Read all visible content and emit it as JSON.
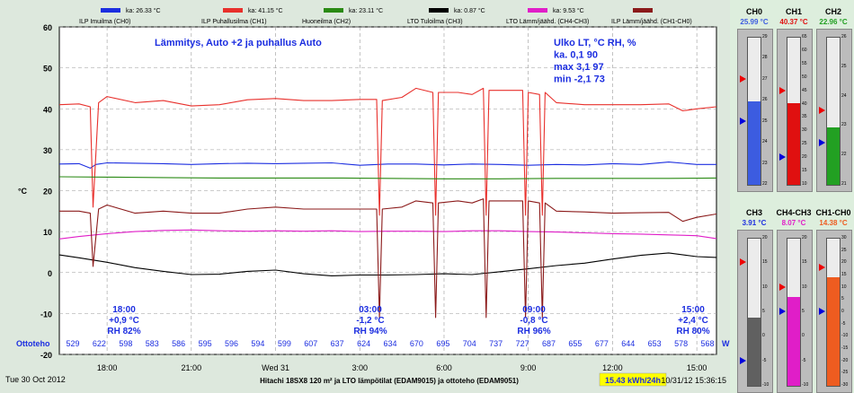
{
  "legend": [
    {
      "swatch": "#1c2ee0",
      "text": "ka: 26.33 °C",
      "name": "ILP Imuilma (CH0)"
    },
    {
      "swatch": "#e8302c",
      "text": "ka: 41.15 °C",
      "name": "ILP Puhallusilma (CH1)"
    },
    {
      "swatch": "#2a8a14",
      "text": "ka: 23.11 °C",
      "name": "Huoneilma (CH2)"
    },
    {
      "swatch": "#000000",
      "text": "ka: 0.87 °C",
      "name": "LTO Tuloilma (CH3)"
    },
    {
      "swatch": "#e01ec8",
      "text": "ka: 9.53 °C",
      "name": "LTO Lämm/jäähd. (CH4-CH3)"
    },
    {
      "swatch": "#8b1a1a",
      "text": "",
      "name": "ILP Lämm/jäähd. (CH1-CH0)"
    }
  ],
  "info": {
    "title": "Lämmitys, Auto +2 ja puhallus Auto",
    "outdoor": [
      "Ulko LT, °C  RH, %",
      "ka.    0,1     90",
      "max  3,1      97",
      "min  -2,1      73"
    ]
  },
  "annotations": [
    {
      "lines": [
        "18:00",
        "+0,9 °C",
        "RH 82%"
      ]
    },
    {
      "lines": [
        "03:00",
        "-1,2 °C",
        "RH 94%"
      ]
    },
    {
      "lines": [
        "09:00",
        "-0,8 °C",
        "RH 96%"
      ]
    },
    {
      "lines": [
        "15:00",
        "+2,4 °C",
        "RH 80%"
      ]
    }
  ],
  "ottoteho": {
    "label": "Ottoteho",
    "unit": "W",
    "values": [
      "529",
      "622",
      "598",
      "583",
      "586",
      "595",
      "596",
      "594",
      "599",
      "607",
      "637",
      "624",
      "634",
      "670",
      "695",
      "704",
      "737",
      "727",
      "687",
      "655",
      "677",
      "644",
      "653",
      "578",
      "568"
    ]
  },
  "footer": {
    "date": "Tue 30 Oct 2012",
    "caption": "Hitachi 18SX8 120 m² ja LTO lämpötilat (EDAM9015) ja ottoteho (EDAM9051)",
    "energy": "15.43 kWh/24h",
    "timestamp": "10/31/12 15:36:15"
  },
  "colors": {
    "ch0": "#1c2ee0",
    "ch1": "#e8302c",
    "ch2": "#2a8a14",
    "ch3": "#000000",
    "ch43": "#e01ec8",
    "ch10": "#8b1a1a",
    "annot": "#1c2ee0",
    "energy_bg": "#ffff00"
  },
  "chart_data": {
    "type": "line",
    "ylabel": "°C",
    "ylim": [
      -20,
      60
    ],
    "yticks": [
      -20,
      -10,
      0,
      10,
      20,
      30,
      40,
      50,
      60
    ],
    "xlim": [
      16.3,
      39.7
    ],
    "xticks": [
      {
        "x": 18,
        "label": "18:00"
      },
      {
        "x": 21,
        "label": "21:00"
      },
      {
        "x": 24,
        "label": "Wed 31"
      },
      {
        "x": 27,
        "label": "3:00"
      },
      {
        "x": 30,
        "label": "6:00"
      },
      {
        "x": 33,
        "label": "9:00"
      },
      {
        "x": 36,
        "label": "12:00"
      },
      {
        "x": 39,
        "label": "15:00"
      }
    ],
    "series": [
      {
        "name": "ILP Imuilma (CH0)",
        "color": "#1c2ee0",
        "x": [
          16.3,
          17,
          17.4,
          17.6,
          18,
          19,
          20,
          21,
          22,
          23,
          24,
          25,
          26,
          27,
          28,
          29,
          30,
          31,
          32,
          33,
          34,
          35,
          36,
          37,
          38,
          39,
          39.7
        ],
        "values": [
          26.5,
          26.6,
          25.5,
          26.4,
          26.8,
          26.7,
          26.6,
          26.4,
          26.6,
          26.7,
          26.6,
          26.7,
          26.8,
          26.2,
          26.5,
          26.5,
          26.3,
          26.5,
          26.4,
          26.2,
          26.4,
          26.3,
          26.6,
          26.4,
          27.0,
          26.4,
          26.4
        ]
      },
      {
        "name": "ILP Puhallusilma (CH1)",
        "color": "#e8302c",
        "x": [
          16.3,
          17,
          17.4,
          17.5,
          17.7,
          18,
          19,
          20,
          21,
          22,
          23,
          24,
          25,
          26,
          27,
          27.6,
          27.7,
          27.8,
          28.5,
          29,
          29.6,
          29.7,
          29.8,
          30.5,
          31,
          31.4,
          31.5,
          31.6,
          32.5,
          32.8,
          32.9,
          33,
          33.4,
          33.5,
          33.6,
          34,
          35,
          36,
          37,
          38,
          38.5,
          39,
          39.7
        ],
        "values": [
          41,
          41.2,
          40.5,
          16,
          41.5,
          43,
          41.5,
          42,
          40.7,
          41,
          42.2,
          42.5,
          42,
          42,
          42.3,
          42.3,
          14,
          42,
          42.8,
          45,
          44,
          14,
          44,
          44,
          43.5,
          45,
          14,
          44.5,
          44.5,
          44.5,
          14,
          44,
          43.5,
          14,
          44,
          41.5,
          41,
          41,
          41,
          41.2,
          39.5,
          40,
          40.5
        ]
      },
      {
        "name": "Huoneilma (CH2)",
        "color": "#2a8a14",
        "x": [
          16.3,
          18,
          20,
          22,
          24,
          26,
          28,
          30,
          32,
          34,
          36,
          38,
          39.7
        ],
        "values": [
          23.4,
          23.3,
          23.2,
          23.1,
          23.1,
          23.1,
          23.0,
          22.9,
          22.9,
          23.0,
          23.0,
          23.0,
          23.1
        ]
      },
      {
        "name": "LTO Tuloilma (CH3)",
        "color": "#000000",
        "x": [
          16.3,
          17,
          18,
          19,
          20,
          21,
          22,
          23,
          24,
          25,
          26,
          27,
          28,
          29,
          30,
          31,
          32,
          33,
          34,
          35,
          36,
          37,
          38,
          39,
          39.7
        ],
        "values": [
          4.3,
          3.6,
          2.5,
          1.2,
          0.3,
          -0.5,
          -0.4,
          0.3,
          0.6,
          -0.3,
          -0.8,
          -0.6,
          -0.6,
          -0.5,
          -0.3,
          -0.5,
          0.2,
          0.9,
          1.7,
          2.3,
          3.3,
          4.2,
          4.8,
          3.9,
          3.7
        ]
      },
      {
        "name": "LTO Lämm/jäähd. (CH4-CH3)",
        "color": "#e01ec8",
        "x": [
          16.3,
          17,
          18,
          19,
          20,
          21,
          22,
          23,
          24,
          25,
          26,
          27,
          28,
          29,
          30,
          31,
          32,
          33,
          34,
          35,
          36,
          37,
          38,
          39,
          39.7
        ],
        "values": [
          8.2,
          8.8,
          9.5,
          10.0,
          10.3,
          10.4,
          10.2,
          10.1,
          10.2,
          10.1,
          10.2,
          10.0,
          10.1,
          10.1,
          10.0,
          10.2,
          10.2,
          10.0,
          9.9,
          9.7,
          9.5,
          9.4,
          9.2,
          9.0,
          8.3
        ]
      },
      {
        "name": "ILP Lämm/jäähd. (CH1-CH0)",
        "color": "#8b1a1a",
        "x": [
          16.3,
          17,
          17.4,
          17.5,
          17.7,
          18,
          19,
          20,
          21,
          22,
          23,
          24,
          25,
          26,
          27,
          27.6,
          27.7,
          27.8,
          28.5,
          29,
          29.6,
          29.7,
          29.8,
          30.5,
          31,
          31.4,
          31.5,
          31.6,
          32.5,
          32.8,
          32.9,
          33,
          33.4,
          33.5,
          33.6,
          34,
          35,
          36,
          37,
          38,
          38.5,
          39,
          39.7
        ],
        "values": [
          15,
          15,
          14.5,
          1.5,
          15.5,
          16.5,
          14.5,
          15,
          14.5,
          14.5,
          15.5,
          16,
          15.5,
          15.5,
          15.5,
          15.5,
          -11,
          15.5,
          16,
          17.5,
          17,
          -11,
          17,
          17.5,
          17,
          18,
          -11,
          17.5,
          17.5,
          17.5,
          -11,
          17.5,
          17,
          -11,
          17,
          15,
          14.8,
          14.5,
          14.6,
          14.7,
          12.5,
          13.5,
          14.3
        ]
      }
    ]
  },
  "gauges": [
    {
      "name": "CH0",
      "value": "25.99 °C",
      "color": "#3c5ce0",
      "min": 22,
      "max": 29,
      "fill": 25.99,
      "red": 27,
      "blue": 25,
      "ticks": [
        "29",
        "28",
        "27",
        "26",
        "25",
        "24",
        "23",
        "22"
      ]
    },
    {
      "name": "CH1",
      "value": "40.37 °C",
      "color": "#e01010",
      "min": 10,
      "max": 65,
      "fill": 40.37,
      "red": 45,
      "blue": 20,
      "ticks": [
        "65",
        "60",
        "55",
        "50",
        "45",
        "40",
        "35",
        "30",
        "25",
        "20",
        "15",
        "10"
      ]
    },
    {
      "name": "CH2",
      "value": "22.96 °C",
      "color": "#22a022",
      "min": 21,
      "max": 26,
      "fill": 22.96,
      "red": 23.5,
      "blue": 22.4,
      "ticks": [
        "26",
        "25",
        "24",
        "23",
        "22",
        "21"
      ]
    },
    {
      "name": "CH3",
      "value": "3.91 °C",
      "color": "#606060",
      "min": -10,
      "max": 20,
      "fill": 3.91,
      "red": 15,
      "blue": -5,
      "ticks": [
        "20",
        "15",
        "10",
        "5",
        "0",
        "-5",
        "-10"
      ]
    },
    {
      "name": "CH4-CH3",
      "value": "8.07 °C",
      "color": "#e01ec8",
      "min": -10,
      "max": 20,
      "fill": 8.07,
      "red": 10,
      "blue": 5,
      "ticks": [
        "20",
        "15",
        "10",
        "5",
        "0",
        "-5",
        "-10"
      ]
    },
    {
      "name": "CH1-CH0",
      "value": "14.38 °C",
      "color": "#ee5c20",
      "min": -30,
      "max": 30,
      "fill": 14.38,
      "red": 18,
      "blue": 0,
      "ticks": [
        "30",
        "25",
        "20",
        "15",
        "10",
        "5",
        "0",
        "-5",
        "-10",
        "-15",
        "-20",
        "-25",
        "-30"
      ]
    }
  ]
}
